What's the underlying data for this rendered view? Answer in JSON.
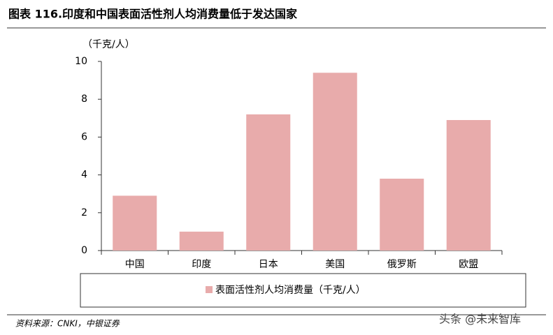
{
  "chart_data": {
    "type": "bar",
    "title": "图表 116.印度和中国表面活性剂人均消费量低于发达国家",
    "y_axis_label": "（千克/人）",
    "categories": [
      "中国",
      "印度",
      "日本",
      "美国",
      "俄罗斯",
      "欧盟"
    ],
    "series": [
      {
        "name": "表面活性剂人均消费量（千克/人）",
        "color": "#e8abab",
        "values": [
          2.9,
          1.0,
          7.2,
          9.4,
          3.8,
          6.9
        ]
      }
    ],
    "ylim": [
      0,
      10
    ],
    "yticks": [
      0,
      2,
      4,
      6,
      8,
      10
    ],
    "grid": false,
    "legend": "bottom",
    "source": "资料来源：CNKI，中银证券",
    "watermark": "头条 @未来智库"
  }
}
